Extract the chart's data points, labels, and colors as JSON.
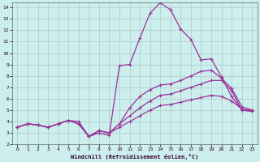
{
  "xlabel": "Windchill (Refroidissement éolien,°C)",
  "background_color": "#cceeed",
  "grid_color": "#b0c8c8",
  "line_color": "#993399",
  "xlim": [
    -0.5,
    23.5
  ],
  "ylim": [
    2,
    14.4
  ],
  "yticks": [
    2,
    3,
    4,
    5,
    6,
    7,
    8,
    9,
    10,
    11,
    12,
    13,
    14
  ],
  "xticks": [
    0,
    1,
    2,
    3,
    4,
    5,
    6,
    7,
    8,
    9,
    10,
    11,
    12,
    13,
    14,
    15,
    16,
    17,
    18,
    19,
    20,
    21,
    22,
    23
  ],
  "s1": [
    3.5,
    3.8,
    3.7,
    3.5,
    3.8,
    4.1,
    4.0,
    2.7,
    3.0,
    2.8,
    8.9,
    9.0,
    11.3,
    13.5,
    14.4,
    13.8,
    12.1,
    11.2,
    9.4,
    9.5,
    7.9,
    6.2,
    5.0,
    4.9
  ],
  "s2": [
    3.5,
    3.8,
    3.7,
    3.5,
    3.8,
    4.1,
    3.8,
    2.7,
    3.2,
    3.0,
    3.8,
    5.2,
    6.2,
    6.8,
    7.2,
    7.3,
    7.6,
    8.0,
    8.4,
    8.5,
    7.8,
    6.9,
    5.3,
    5.0
  ],
  "s3": [
    3.5,
    3.8,
    3.7,
    3.5,
    3.8,
    4.1,
    3.8,
    2.7,
    3.2,
    3.0,
    3.8,
    4.5,
    5.2,
    5.8,
    6.3,
    6.4,
    6.7,
    7.0,
    7.3,
    7.6,
    7.6,
    6.7,
    5.0,
    4.9
  ],
  "s4": [
    3.5,
    3.8,
    3.7,
    3.5,
    3.8,
    4.1,
    3.8,
    2.7,
    3.2,
    3.0,
    3.5,
    4.0,
    4.5,
    5.0,
    5.4,
    5.5,
    5.7,
    5.9,
    6.1,
    6.3,
    6.2,
    5.8,
    5.1,
    5.0
  ]
}
